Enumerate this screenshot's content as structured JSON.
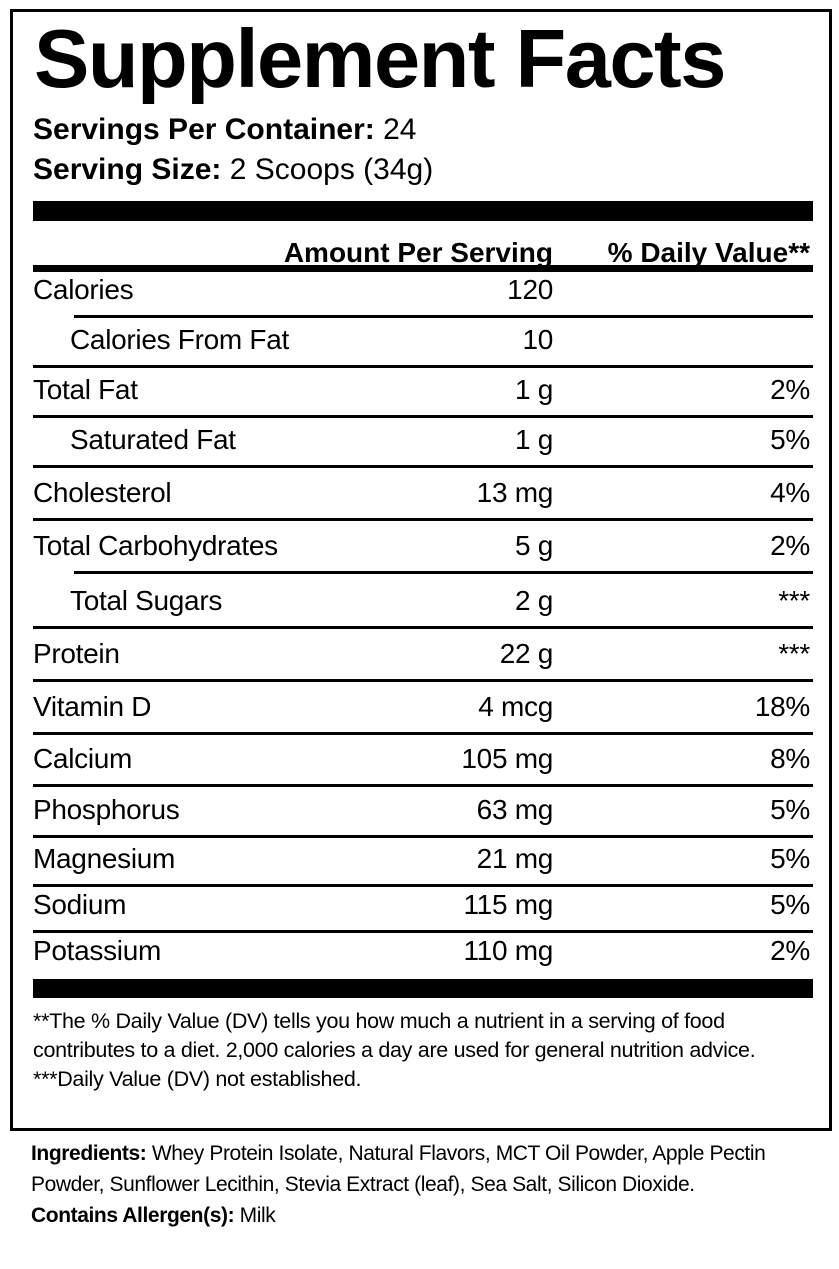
{
  "title": "Supplement Facts",
  "servings_per_container": {
    "label": "Servings Per Container:",
    "value": "24"
  },
  "serving_size": {
    "label": "Serving Size:",
    "value": "2 Scoops (34g)"
  },
  "header": {
    "amount": "Amount Per Serving",
    "daily_value": "% Daily Value**"
  },
  "rows": [
    {
      "name": "Calories",
      "amount": "120",
      "dv": "",
      "indent": false,
      "line_indent": true
    },
    {
      "name": "Calories From Fat",
      "amount": "10",
      "dv": "",
      "indent": true,
      "line_indent": false
    },
    {
      "name": "Total Fat",
      "amount": "1 g",
      "dv": "2%",
      "indent": false,
      "line_indent": false
    },
    {
      "name": "Saturated Fat",
      "amount": "1 g",
      "dv": "5%",
      "indent": true,
      "line_indent": false
    },
    {
      "name": "Cholesterol",
      "amount": "13 mg",
      "dv": "4%",
      "indent": false,
      "line_indent": false
    },
    {
      "name": "Total Carbohydrates",
      "amount": "5 g",
      "dv": "2%",
      "indent": false,
      "line_indent": true
    },
    {
      "name": "Total Sugars",
      "amount": "2 g",
      "dv": "***",
      "indent": true,
      "line_indent": false
    },
    {
      "name": "Protein",
      "amount": "22 g",
      "dv": "***",
      "indent": false,
      "line_indent": false
    },
    {
      "name": "Vitamin D",
      "amount": "4 mcg",
      "dv": "18%",
      "indent": false,
      "line_indent": false
    },
    {
      "name": "Calcium",
      "amount": "105 mg",
      "dv": "8%",
      "indent": false,
      "line_indent": false
    },
    {
      "name": "Phosphorus",
      "amount": "63 mg",
      "dv": "5%",
      "indent": false,
      "line_indent": false
    },
    {
      "name": "Magnesium",
      "amount": "21 mg",
      "dv": "5%",
      "indent": false,
      "line_indent": false
    },
    {
      "name": "Sodium",
      "amount": "115 mg",
      "dv": "5%",
      "indent": false,
      "line_indent": false
    },
    {
      "name": "Potassium",
      "amount": "110 mg",
      "dv": "2%",
      "indent": false,
      "line_indent": false
    }
  ],
  "notes": {
    "dv_note": "**The % Daily Value (DV) tells you how much a nutrient in a serving of food contributes to a diet. 2,000 calories a day are used for general nutrition advice.",
    "not_established": "***Daily Value (DV) not established."
  },
  "ingredients": {
    "label": "Ingredients:",
    "text": "Whey Protein Isolate, Natural Flavors, MCT Oil Powder, Apple Pectin Powder, Sunflower Lecithin, Stevia Extract (leaf), Sea Salt, Silicon Dioxide."
  },
  "allergens": {
    "label": "Contains Allergen(s):",
    "text": "Milk"
  }
}
